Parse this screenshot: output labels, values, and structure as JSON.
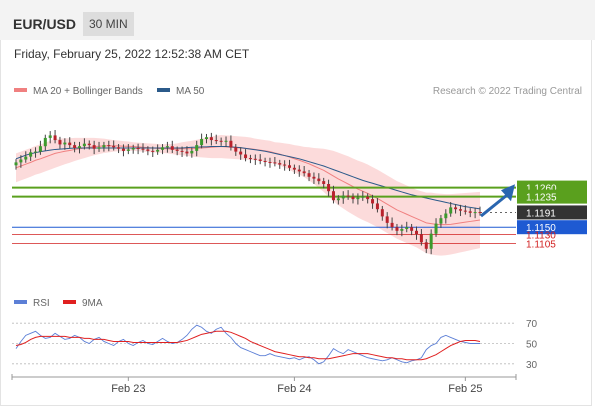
{
  "header": {
    "symbol": "EUR/USD",
    "timeframe": "30 MIN"
  },
  "timestamp": "Friday, February 25, 2022 12:52:38 AM CET",
  "legend": {
    "main": [
      {
        "label": "MA 20 + Bollinger Bands",
        "color": "#f08080"
      },
      {
        "label": "MA 50",
        "color": "#2b5a8a"
      }
    ],
    "credit": "Research © 2022 Trading Central",
    "rsi": [
      {
        "label": "RSI",
        "color": "#5c7fd6"
      },
      {
        "label": "9MA",
        "color": "#e02020"
      }
    ]
  },
  "colors": {
    "resistance": "#5aa01e",
    "support": "#1e5ad2",
    "target": "#d22020",
    "last": "#333333",
    "arrow": "#2a66b0",
    "bands": "#fbd2d2"
  },
  "chart_data": [
    {
      "type": "candlestick",
      "title": "EUR/USD",
      "yrange": [
        1.0995,
        1.147
      ],
      "x_ticks": [
        {
          "label": "Feb 23",
          "i": 23
        },
        {
          "label": "Feb 24",
          "i": 57
        },
        {
          "label": "Feb 25",
          "i": 92
        }
      ],
      "levels": [
        {
          "value": 1.126,
          "label": "1.1260",
          "kind": "resistance"
        },
        {
          "value": 1.1235,
          "label": "1.1235",
          "kind": "resistance"
        },
        {
          "value": 1.1191,
          "label": "1.1191",
          "kind": "last"
        },
        {
          "value": 1.115,
          "label": "1.1150",
          "kind": "support"
        },
        {
          "value": 1.113,
          "label": "1.1130",
          "kind": "target"
        },
        {
          "value": 1.1105,
          "label": "1.1105",
          "kind": "target"
        }
      ],
      "closes": [
        1.133,
        1.1338,
        1.1346,
        1.1358,
        1.136,
        1.1375,
        1.1398,
        1.1405,
        1.1392,
        1.138,
        1.1385,
        1.1378,
        1.137,
        1.1375,
        1.1382,
        1.1378,
        1.1368,
        1.1372,
        1.1378,
        1.1376,
        1.1372,
        1.1368,
        1.1362,
        1.1366,
        1.137,
        1.1368,
        1.1366,
        1.1362,
        1.136,
        1.1365,
        1.1372,
        1.1375,
        1.1365,
        1.1362,
        1.136,
        1.1355,
        1.1362,
        1.1378,
        1.1395,
        1.14,
        1.1392,
        1.139,
        1.1388,
        1.139,
        1.1372,
        1.136,
        1.1352,
        1.1342,
        1.134,
        1.1338,
        1.1334,
        1.1331,
        1.133,
        1.1328,
        1.1324,
        1.1322,
        1.1315,
        1.131,
        1.1305,
        1.13,
        1.129,
        1.1285,
        1.1278,
        1.127,
        1.125,
        1.1225,
        1.123,
        1.1238,
        1.1235,
        1.1228,
        1.1232,
        1.1235,
        1.1228,
        1.1216,
        1.12,
        1.118,
        1.1162,
        1.115,
        1.114,
        1.1145,
        1.115,
        1.114,
        1.113,
        1.1108,
        1.109,
        1.1132,
        1.116,
        1.1175,
        1.1188,
        1.1205,
        1.12,
        1.1196,
        1.1194,
        1.119,
        1.1192,
        1.1191
      ],
      "ma20": [
        1.1315,
        1.132,
        1.1325,
        1.133,
        1.1336,
        1.134,
        1.1345,
        1.135,
        1.1355,
        1.1358,
        1.1361,
        1.1363,
        1.1366,
        1.1368,
        1.137,
        1.1372,
        1.1374,
        1.1375,
        1.1376,
        1.1376,
        1.1376,
        1.1376,
        1.1375,
        1.1375,
        1.1374,
        1.1373,
        1.1372,
        1.1371,
        1.137,
        1.1369,
        1.1368,
        1.1368,
        1.1367,
        1.1367,
        1.1368,
        1.1368,
        1.1368,
        1.1369,
        1.137,
        1.1371,
        1.1372,
        1.1373,
        1.1374,
        1.1373,
        1.1372,
        1.1371,
        1.137,
        1.1369,
        1.1368,
        1.1366,
        1.1364,
        1.1362,
        1.136,
        1.1356,
        1.1353,
        1.1349,
        1.1345,
        1.134,
        1.1336,
        1.1331,
        1.1326,
        1.132,
        1.1314,
        1.1308,
        1.13,
        1.1292,
        1.1284,
        1.1277,
        1.127,
        1.1263,
        1.1256,
        1.125,
        1.1244,
        1.1237,
        1.123,
        1.1222,
        1.1214,
        1.1206,
        1.1198,
        1.1192,
        1.1186,
        1.118,
        1.1174,
        1.1168,
        1.1162,
        1.116,
        1.1158,
        1.1157,
        1.1157,
        1.1158,
        1.116,
        1.1162,
        1.1164,
        1.1166,
        1.1168,
        1.117
      ],
      "ma50": [
        1.134,
        1.1345,
        1.135,
        1.1354,
        1.1357,
        1.136,
        1.1362,
        1.1364,
        1.1366,
        1.1367,
        1.1368,
        1.1369,
        1.137,
        1.137,
        1.137,
        1.137,
        1.137,
        1.137,
        1.137,
        1.137,
        1.137,
        1.137,
        1.137,
        1.137,
        1.137,
        1.137,
        1.137,
        1.137,
        1.137,
        1.137,
        1.137,
        1.137,
        1.137,
        1.137,
        1.137,
        1.1371,
        1.1372,
        1.1372,
        1.1373,
        1.1373,
        1.1374,
        1.1374,
        1.1374,
        1.1374,
        1.1373,
        1.1372,
        1.1371,
        1.1369,
        1.1367,
        1.1365,
        1.1363,
        1.1361,
        1.1358,
        1.1355,
        1.1352,
        1.1349,
        1.1346,
        1.1343,
        1.134,
        1.1336,
        1.1332,
        1.1328,
        1.1324,
        1.132,
        1.1315,
        1.131,
        1.1305,
        1.13,
        1.1295,
        1.129,
        1.1285,
        1.128,
        1.1276,
        1.1272,
        1.1268,
        1.1264,
        1.126,
        1.1256,
        1.1252,
        1.1248,
        1.1244,
        1.124,
        1.1237,
        1.1234,
        1.1231,
        1.1228,
        1.1225,
        1.1222,
        1.1219,
        1.1216,
        1.1213,
        1.121,
        1.1207,
        1.1205,
        1.1203,
        1.1201
      ],
      "bb_width": [
        0.004,
        0.004,
        0.004,
        0.004,
        0.004,
        0.004,
        0.004,
        0.004,
        0.004,
        0.0038,
        0.0036,
        0.0034,
        0.0032,
        0.003,
        0.0028,
        0.0026,
        0.0024,
        0.0022,
        0.002,
        0.0018,
        0.0016,
        0.0015,
        0.0014,
        0.0013,
        0.0012,
        0.0012,
        0.0012,
        0.0012,
        0.0012,
        0.0012,
        0.0012,
        0.0013,
        0.0014,
        0.0016,
        0.0018,
        0.002,
        0.0022,
        0.0024,
        0.0026,
        0.0028,
        0.003,
        0.0031,
        0.0032,
        0.0032,
        0.0032,
        0.0032,
        0.0032,
        0.0032,
        0.0031,
        0.003,
        0.003,
        0.003,
        0.003,
        0.003,
        0.0032,
        0.0034,
        0.0036,
        0.0038,
        0.004,
        0.0042,
        0.0046,
        0.005,
        0.0055,
        0.006,
        0.0065,
        0.007,
        0.0073,
        0.0075,
        0.0077,
        0.0078,
        0.0079,
        0.008,
        0.008,
        0.008,
        0.008,
        0.008,
        0.008,
        0.008,
        0.008,
        0.008,
        0.008,
        0.008,
        0.008,
        0.0082,
        0.0084,
        0.0086,
        0.0086,
        0.0086,
        0.0085,
        0.0084,
        0.0083,
        0.0082,
        0.0081,
        0.008,
        0.0079,
        0.0078
      ]
    },
    {
      "type": "line",
      "title": "RSI",
      "yrange": [
        20,
        80
      ],
      "y_ticks": [
        70,
        50,
        30
      ],
      "series": [
        {
          "name": "RSI",
          "values": [
            45,
            52,
            58,
            60,
            62,
            58,
            55,
            56,
            60,
            57,
            54,
            55,
            58,
            56,
            52,
            50,
            54,
            56,
            52,
            50,
            48,
            52,
            54,
            50,
            48,
            51,
            53,
            50,
            49,
            52,
            55,
            52,
            50,
            51,
            54,
            58,
            64,
            68,
            66,
            62,
            60,
            64,
            66,
            60,
            56,
            50,
            46,
            44,
            42,
            40,
            38,
            38,
            40,
            38,
            37,
            36,
            35,
            36,
            34,
            36,
            37,
            34,
            30,
            32,
            38,
            45,
            42,
            40,
            44,
            42,
            40,
            38,
            36,
            35,
            34,
            33,
            34,
            36,
            34,
            32,
            31,
            33,
            34,
            36,
            44,
            48,
            50,
            56,
            58,
            56,
            54,
            52,
            51,
            50,
            50,
            50
          ]
        },
        {
          "name": "9MA",
          "values": [
            48,
            49,
            51,
            54,
            56,
            57,
            57,
            57,
            57,
            57,
            57,
            56,
            56,
            56,
            55,
            55,
            54,
            54,
            54,
            53,
            52,
            52,
            52,
            52,
            51,
            51,
            51,
            51,
            51,
            51,
            51,
            51,
            51,
            51,
            52,
            53,
            55,
            57,
            59,
            60,
            61,
            62,
            62,
            62,
            61,
            59,
            57,
            55,
            52,
            50,
            48,
            46,
            44,
            42,
            41,
            40,
            39,
            38,
            37,
            37,
            36,
            36,
            35,
            35,
            35,
            36,
            37,
            38,
            39,
            40,
            40,
            40,
            40,
            39,
            38,
            37,
            36,
            36,
            35,
            35,
            34,
            34,
            34,
            34,
            35,
            37,
            39,
            42,
            45,
            48,
            50,
            52,
            53,
            53,
            53,
            52
          ]
        }
      ]
    }
  ]
}
